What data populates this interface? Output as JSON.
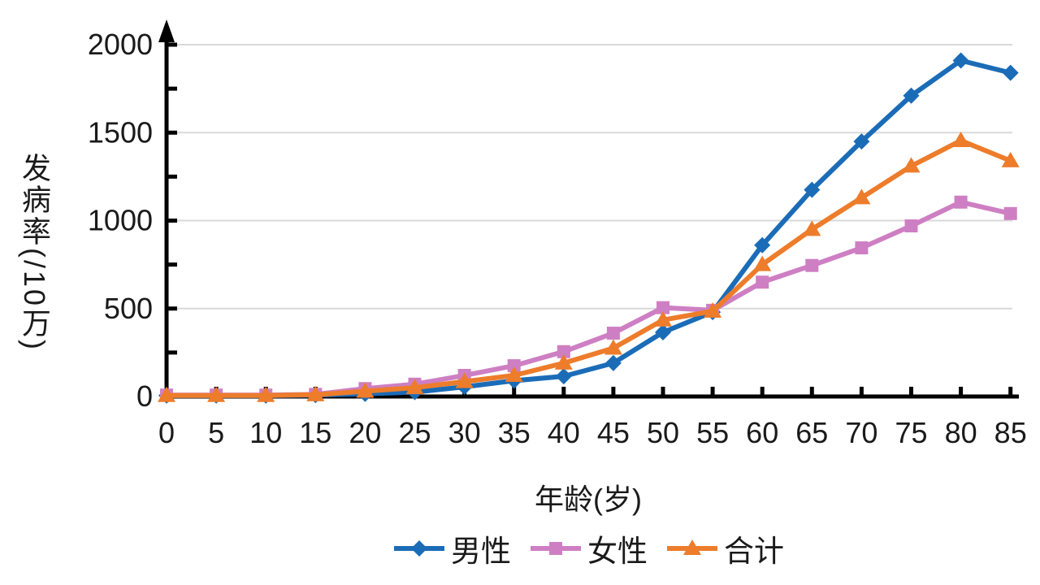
{
  "chart_data": {
    "type": "line",
    "title": "",
    "xlabel": "年龄(岁)",
    "ylabel": "发病率(/10万)",
    "x_categories": [
      "0",
      "5",
      "10",
      "15",
      "20",
      "25",
      "30",
      "35",
      "40",
      "45",
      "50",
      "55",
      "60",
      "65",
      "70",
      "75",
      "80",
      "85"
    ],
    "yticks": [
      0,
      500,
      1000,
      1500,
      2000
    ],
    "y_minor_tick_step": 250,
    "ylim": [
      0,
      2000
    ],
    "grid": true,
    "legend_position": "bottom",
    "series": [
      {
        "key": "male",
        "name": "男性",
        "marker": "diamond",
        "color": "#1B6CB7",
        "values": [
          5,
          5,
          5,
          8,
          15,
          25,
          55,
          90,
          115,
          190,
          365,
          480,
          860,
          1175,
          1450,
          1710,
          1910,
          1840
        ]
      },
      {
        "key": "female",
        "name": "女性",
        "marker": "square",
        "color": "#CE7FC3",
        "values": [
          8,
          8,
          8,
          12,
          45,
          70,
          120,
          175,
          255,
          360,
          505,
          490,
          650,
          745,
          845,
          970,
          1105,
          1040
        ]
      },
      {
        "key": "total",
        "name": "合计",
        "marker": "triangle",
        "color": "#ED7C2B",
        "values": [
          6,
          6,
          6,
          10,
          30,
          50,
          85,
          120,
          190,
          275,
          435,
          485,
          750,
          950,
          1130,
          1310,
          1455,
          1340
        ]
      }
    ],
    "colors": {
      "grid": "#D9D9D9",
      "axis": "#000000",
      "text": "#1A1A1A",
      "background": "#FFFFFF"
    }
  }
}
